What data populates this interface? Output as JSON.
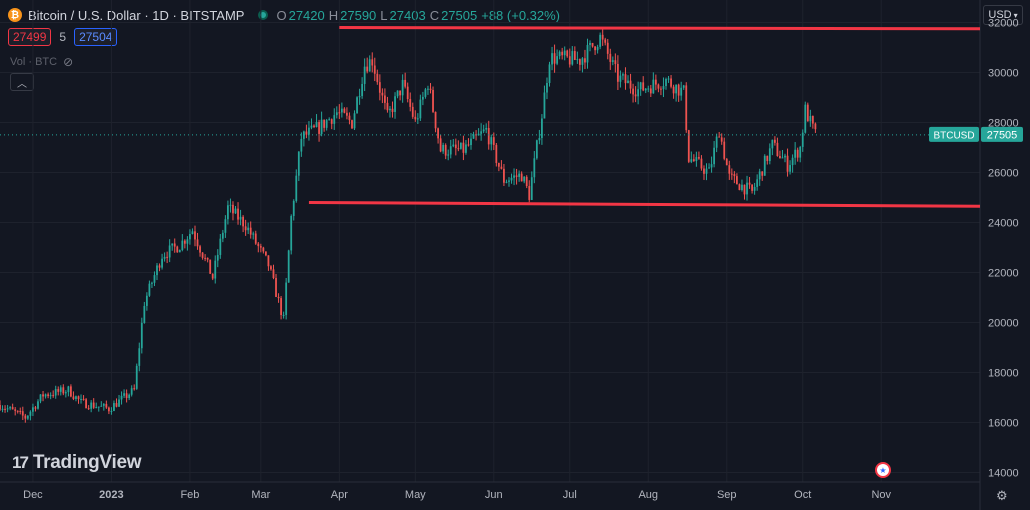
{
  "header": {
    "coin_glyph": "₿",
    "symbol_line": "Bitcoin / U.S. Dollar · 1D · BITSTAMP",
    "o_label": "O",
    "o_value": "27420",
    "h_label": "H",
    "h_value": "27590",
    "l_label": "L",
    "l_value": "27403",
    "c_label": "C",
    "c_value": "27505",
    "change": "+88 (+0.32%)"
  },
  "quote": {
    "bid": "27499",
    "spread": "5",
    "ask": "27504"
  },
  "volume_label": "Vol · BTC",
  "currency": "USD",
  "branding": {
    "logo_mark": "17",
    "name": "TradingView"
  },
  "colors": {
    "up": "#26a69a",
    "down": "#ef5350",
    "resistance": "#f23645",
    "support": "#f23645",
    "background": "#131722"
  },
  "chart_data": {
    "type": "candlestick",
    "title": "",
    "price_label": {
      "name": "BTCUSD",
      "value": 27505
    },
    "y_axis": {
      "ticks": [
        14000,
        16000,
        18000,
        20000,
        22000,
        24000,
        26000,
        28000,
        30000,
        32000
      ],
      "range": [
        13700,
        32900
      ]
    },
    "x_axis": {
      "ticks": [
        {
          "label": "Dec",
          "date": "2022-12-01",
          "bold": false
        },
        {
          "label": "2023",
          "date": "2023-01-01",
          "bold": true
        },
        {
          "label": "Feb",
          "date": "2023-02-01",
          "bold": false
        },
        {
          "label": "Mar",
          "date": "2023-03-01",
          "bold": false
        },
        {
          "label": "Apr",
          "date": "2023-04-01",
          "bold": false
        },
        {
          "label": "May",
          "date": "2023-05-01",
          "bold": false
        },
        {
          "label": "Jun",
          "date": "2023-06-01",
          "bold": false
        },
        {
          "label": "Jul",
          "date": "2023-07-01",
          "bold": false
        },
        {
          "label": "Aug",
          "date": "2023-08-01",
          "bold": false
        },
        {
          "label": "Sep",
          "date": "2023-09-01",
          "bold": false
        },
        {
          "label": "Oct",
          "date": "2023-10-01",
          "bold": false
        },
        {
          "label": "Nov",
          "date": "2023-11-01",
          "bold": false
        }
      ],
      "range": [
        "2022-11-18",
        "2023-12-10"
      ]
    },
    "trendlines": [
      {
        "name": "resistance",
        "from": {
          "date": "2023-04-01",
          "price": 31800
        },
        "to": {
          "date": "2023-12-10",
          "price": 31750
        }
      },
      {
        "name": "support",
        "from": {
          "date": "2023-03-20",
          "price": 24800
        },
        "to": {
          "date": "2023-12-10",
          "price": 24650
        }
      }
    ],
    "price_path": [
      [
        "2022-11-18",
        16700
      ],
      [
        "2022-11-28",
        16200
      ],
      [
        "2022-12-05",
        17100
      ],
      [
        "2022-12-15",
        17300
      ],
      [
        "2022-12-20",
        16800
      ],
      [
        "2022-12-31",
        16550
      ],
      [
        "2023-01-10",
        17300
      ],
      [
        "2023-01-14",
        20800
      ],
      [
        "2023-01-21",
        22700
      ],
      [
        "2023-01-28",
        23100
      ],
      [
        "2023-02-02",
        23700
      ],
      [
        "2023-02-10",
        21800
      ],
      [
        "2023-02-16",
        24600
      ],
      [
        "2023-02-23",
        23900
      ],
      [
        "2023-03-04",
        22300
      ],
      [
        "2023-03-10",
        20100
      ],
      [
        "2023-03-13",
        24200
      ],
      [
        "2023-03-17",
        27400
      ],
      [
        "2023-03-24",
        27800
      ],
      [
        "2023-03-31",
        28400
      ],
      [
        "2023-04-06",
        28000
      ],
      [
        "2023-04-11",
        30300
      ],
      [
        "2023-04-14",
        30500
      ],
      [
        "2023-04-20",
        28200
      ],
      [
        "2023-04-26",
        29500
      ],
      [
        "2023-05-01",
        28000
      ],
      [
        "2023-05-06",
        29600
      ],
      [
        "2023-05-11",
        26900
      ],
      [
        "2023-05-20",
        26900
      ],
      [
        "2023-05-29",
        27700
      ],
      [
        "2023-06-05",
        25700
      ],
      [
        "2023-06-12",
        25900
      ],
      [
        "2023-06-15",
        25100
      ],
      [
        "2023-06-20",
        28300
      ],
      [
        "2023-06-23",
        30600
      ],
      [
        "2023-07-05",
        30500
      ],
      [
        "2023-07-13",
        31400
      ],
      [
        "2023-07-20",
        29800
      ],
      [
        "2023-07-28",
        29300
      ],
      [
        "2023-08-08",
        29700
      ],
      [
        "2023-08-15",
        29200
      ],
      [
        "2023-08-17",
        26600
      ],
      [
        "2023-08-25",
        26000
      ],
      [
        "2023-08-29",
        27700
      ],
      [
        "2023-09-02",
        25800
      ],
      [
        "2023-09-11",
        25200
      ],
      [
        "2023-09-19",
        27100
      ],
      [
        "2023-09-25",
        26300
      ],
      [
        "2023-09-30",
        27000
      ],
      [
        "2023-10-02",
        28500
      ],
      [
        "2023-10-06",
        27505
      ]
    ]
  }
}
